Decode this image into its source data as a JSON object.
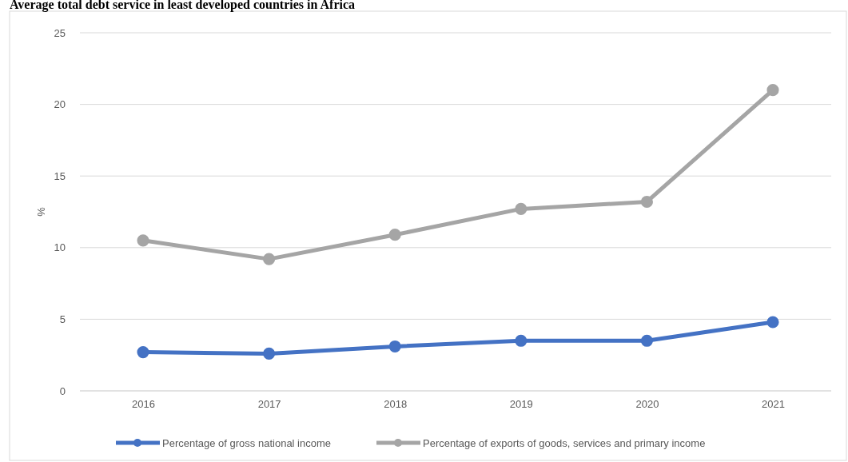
{
  "chart_data": {
    "type": "line",
    "title": "Average total debt service in least developed countries in Africa",
    "ylabel": "%",
    "categories": [
      "2016",
      "2017",
      "2018",
      "2019",
      "2020",
      "2021"
    ],
    "series": [
      {
        "name": "Percentage of gross national income",
        "color": "#4472c4",
        "values": [
          2.7,
          2.6,
          3.1,
          3.5,
          3.5,
          4.8
        ]
      },
      {
        "name": "Percentage of exports of goods, services and primary income",
        "color": "#a5a5a5",
        "values": [
          10.5,
          9.2,
          10.9,
          12.7,
          13.2,
          21.0
        ]
      }
    ],
    "ylim": [
      0,
      25
    ],
    "yticks": [
      0,
      5,
      10,
      15,
      20,
      25
    ],
    "grid": "y",
    "legend": "bottom",
    "marker": "circle",
    "line_style": "solid"
  }
}
